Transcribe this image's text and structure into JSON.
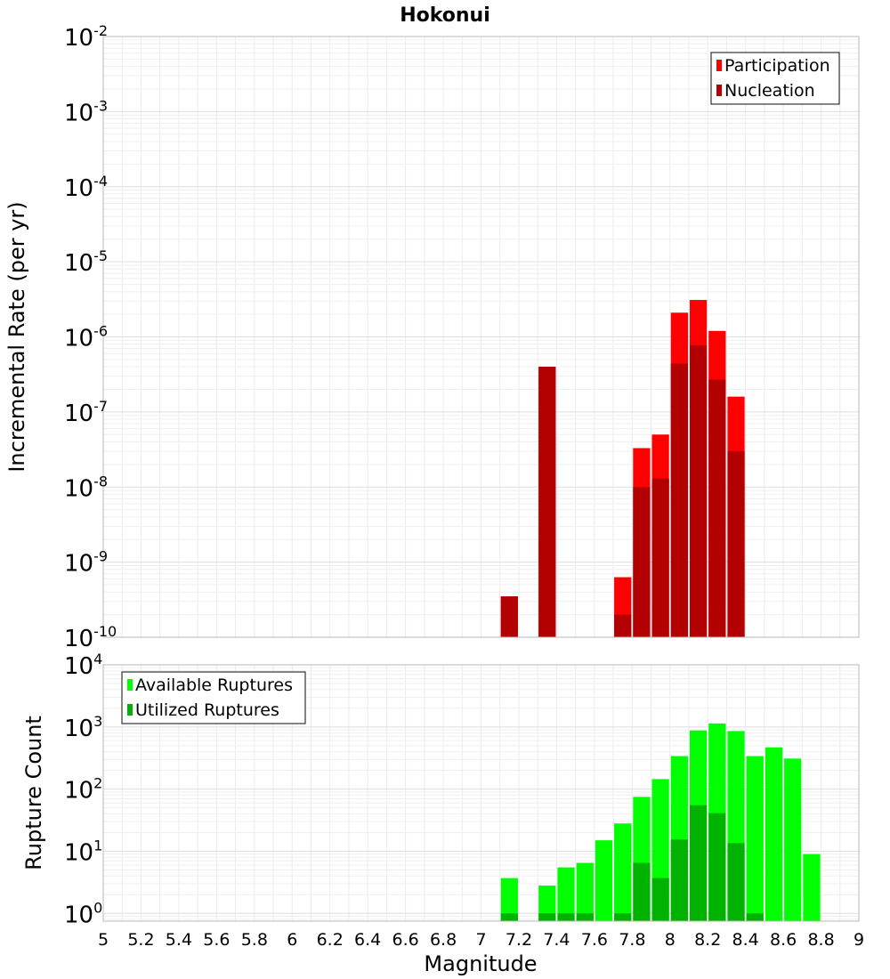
{
  "chart_data": [
    {
      "type": "bar",
      "title": "Hokonui",
      "ylabel": "Incremental Rate (per yr)",
      "yscale": "log",
      "ylim": [
        1e-10,
        0.01
      ],
      "xlim": [
        5,
        9
      ],
      "grid": true,
      "legend": {
        "placement": "top-right",
        "entries": [
          "Participation",
          "Nucleation"
        ]
      },
      "y_tick_labels": [
        {
          "base": "10",
          "exp": "-10",
          "value": 1e-10
        },
        {
          "base": "10",
          "exp": "-9",
          "value": 1e-09
        },
        {
          "base": "10",
          "exp": "-8",
          "value": 1e-08
        },
        {
          "base": "10",
          "exp": "-7",
          "value": 1e-07
        },
        {
          "base": "10",
          "exp": "-6",
          "value": 1e-06
        },
        {
          "base": "10",
          "exp": "-5",
          "value": 1e-05
        },
        {
          "base": "10",
          "exp": "-4",
          "value": 0.0001
        },
        {
          "base": "10",
          "exp": "-3",
          "value": 0.001
        },
        {
          "base": "10",
          "exp": "-2",
          "value": 0.01
        }
      ],
      "series": [
        {
          "name": "Participation",
          "color": "#ff0000",
          "x": [
            7.15,
            7.35,
            7.75,
            7.85,
            7.95,
            8.05,
            8.15,
            8.25,
            8.35
          ],
          "values": [
            3.5e-10,
            4e-07,
            6.3e-10,
            3.3e-08,
            5e-08,
            2.1e-06,
            3.1e-06,
            1.2e-06,
            1.6e-07
          ]
        },
        {
          "name": "Nucleation",
          "color": "#b30000",
          "x": [
            7.15,
            7.35,
            7.75,
            7.85,
            7.95,
            8.05,
            8.15,
            8.25,
            8.35
          ],
          "values": [
            3.5e-10,
            4e-07,
            2e-10,
            1e-08,
            1.3e-08,
            4.4e-07,
            7.7e-07,
            2.7e-07,
            3e-08
          ]
        }
      ]
    },
    {
      "type": "bar",
      "xlabel": "Magnitude",
      "ylabel": "Rupture Count",
      "yscale": "log",
      "ylim": [
        0.75,
        10000
      ],
      "xlim": [
        5,
        9
      ],
      "grid": true,
      "legend": {
        "placement": "top-left",
        "entries": [
          "Available Ruptures",
          "Utilized Ruptures"
        ]
      },
      "x_tick_labels": [
        "5",
        "5.2",
        "5.4",
        "5.6",
        "5.8",
        "6",
        "6.2",
        "6.4",
        "6.6",
        "6.8",
        "7",
        "7.2",
        "7.4",
        "7.6",
        "7.8",
        "8",
        "8.2",
        "8.4",
        "8.6",
        "8.8",
        "9"
      ],
      "y_tick_labels": [
        {
          "base": "10",
          "exp": "0",
          "value": 1
        },
        {
          "base": "10",
          "exp": "1",
          "value": 10
        },
        {
          "base": "10",
          "exp": "2",
          "value": 100
        },
        {
          "base": "10",
          "exp": "3",
          "value": 1000
        },
        {
          "base": "10",
          "exp": "4",
          "value": 10000
        }
      ],
      "series": [
        {
          "name": "Available Ruptures",
          "color": "#00ff00",
          "x": [
            7.15,
            7.35,
            7.45,
            7.55,
            7.65,
            7.75,
            7.85,
            7.95,
            8.05,
            8.15,
            8.25,
            8.35,
            8.45,
            8.55,
            8.65,
            8.75
          ],
          "values": [
            3.7,
            2.8,
            5.5,
            6.5,
            15,
            28,
            75,
            145,
            340,
            880,
            1140,
            860,
            340,
            470,
            310,
            9
          ]
        },
        {
          "name": "Utilized Ruptures",
          "color": "#00b300",
          "x": [
            7.15,
            7.35,
            7.45,
            7.55,
            7.75,
            7.85,
            7.95,
            8.05,
            8.15,
            8.25,
            8.35,
            8.45
          ],
          "values": [
            1,
            1,
            1,
            1,
            1,
            6.5,
            3.7,
            15.5,
            55,
            41,
            13.5,
            1
          ]
        }
      ]
    }
  ]
}
